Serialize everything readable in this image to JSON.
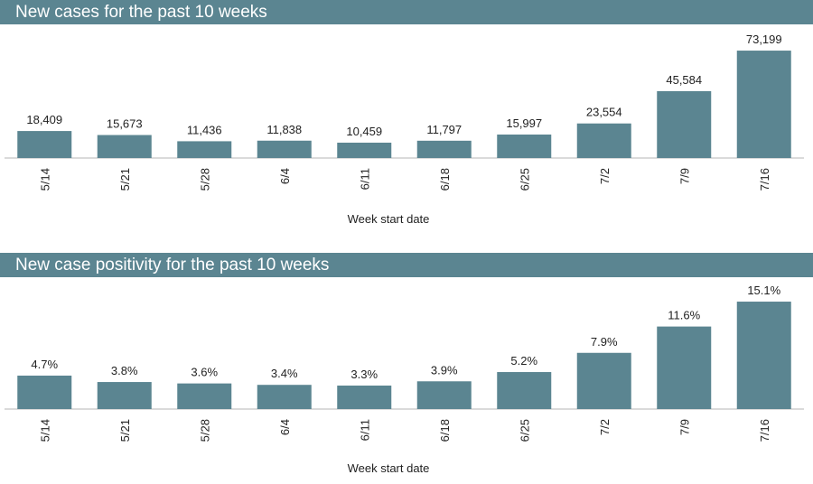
{
  "chart_data": [
    {
      "type": "bar",
      "title": "New cases for the past 10 weeks",
      "xlabel": "Week start date",
      "ylabel": "",
      "categories": [
        "5/14",
        "5/21",
        "5/28",
        "6/4",
        "6/11",
        "6/18",
        "6/25",
        "7/2",
        "7/9",
        "7/16"
      ],
      "values": [
        18409,
        15673,
        11436,
        11838,
        10459,
        11797,
        15997,
        23554,
        45584,
        73199
      ],
      "value_labels": [
        "18,409",
        "15,673",
        "11,436",
        "11,838",
        "10,459",
        "11,797",
        "15,997",
        "23,554",
        "45,584",
        "73,199"
      ],
      "ylim": [
        0,
        80000
      ],
      "grid": false,
      "bar_color": "#5b8591"
    },
    {
      "type": "bar",
      "title": "New case positivity for the past 10 weeks",
      "xlabel": "Week start date",
      "ylabel": "",
      "categories": [
        "5/14",
        "5/21",
        "5/28",
        "6/4",
        "6/11",
        "6/18",
        "6/25",
        "7/2",
        "7/9",
        "7/16"
      ],
      "values": [
        4.7,
        3.8,
        3.6,
        3.4,
        3.3,
        3.9,
        5.2,
        7.9,
        11.6,
        15.1
      ],
      "value_labels": [
        "4.7%",
        "3.8%",
        "3.6%",
        "3.4%",
        "3.3%",
        "3.9%",
        "5.2%",
        "7.9%",
        "11.6%",
        "15.1%"
      ],
      "ylim": [
        0,
        16.5
      ],
      "grid": false,
      "bar_color": "#5b8591"
    }
  ]
}
